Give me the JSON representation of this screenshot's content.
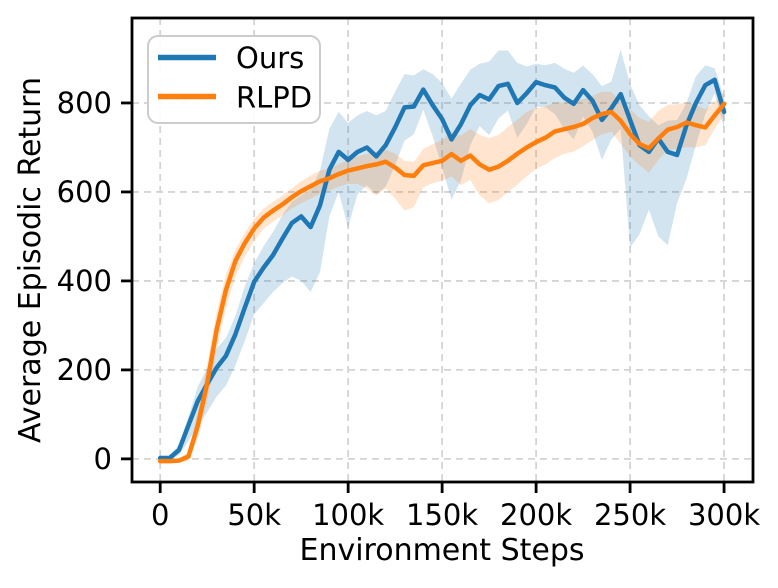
{
  "chart_data": {
    "type": "line",
    "title": "",
    "xlabel": "Environment Steps",
    "ylabel": "Average Episodic Return",
    "xlim": [
      -15000,
      315400
    ],
    "ylim": [
      -52,
      991
    ],
    "grid": true,
    "grid_style": "dashed",
    "legend_position": "upper-left",
    "x_ticks": [
      {
        "value": 0,
        "label": "0"
      },
      {
        "value": 50000,
        "label": "50k"
      },
      {
        "value": 100000,
        "label": "100k"
      },
      {
        "value": 150000,
        "label": "150k"
      },
      {
        "value": 200000,
        "label": "200k"
      },
      {
        "value": 250000,
        "label": "250k"
      },
      {
        "value": 300000,
        "label": "300k"
      }
    ],
    "y_ticks": [
      {
        "value": 0,
        "label": "0"
      },
      {
        "value": 200,
        "label": "200"
      },
      {
        "value": 400,
        "label": "400"
      },
      {
        "value": 600,
        "label": "600"
      },
      {
        "value": 800,
        "label": "800"
      }
    ],
    "x": [
      0,
      5000,
      10000,
      15000,
      20000,
      25000,
      30000,
      35000,
      40000,
      45000,
      50000,
      55000,
      60000,
      65000,
      70000,
      75000,
      80000,
      85000,
      90000,
      95000,
      100000,
      105000,
      110000,
      115000,
      120000,
      125000,
      130000,
      135000,
      140000,
      145000,
      150000,
      155000,
      160000,
      165000,
      170000,
      175000,
      180000,
      185000,
      190000,
      195000,
      200000,
      205000,
      210000,
      215000,
      220000,
      225000,
      230000,
      235000,
      240000,
      245000,
      250000,
      255000,
      260000,
      265000,
      270000,
      275000,
      280000,
      285000,
      290000,
      295000,
      300000
    ],
    "series": [
      {
        "name": "Ours",
        "color": "#1f77b4",
        "band_alpha": 0.2,
        "values": [
          2,
          2,
          20,
          75,
          130,
          168,
          205,
          232,
          280,
          340,
          398,
          430,
          458,
          495,
          530,
          545,
          521,
          570,
          650,
          690,
          672,
          690,
          700,
          680,
          705,
          745,
          790,
          792,
          830,
          795,
          764,
          718,
          752,
          795,
          818,
          808,
          838,
          843,
          800,
          822,
          847,
          840,
          835,
          812,
          798,
          829,
          805,
          762,
          788,
          820,
          762,
          705,
          690,
          720,
          690,
          683,
          750,
          800,
          840,
          852,
          780
        ],
        "band_lower": [
          -3,
          -3,
          8,
          40,
          75,
          105,
          140,
          165,
          210,
          265,
          325,
          350,
          375,
          395,
          410,
          400,
          375,
          420,
          545,
          600,
          520,
          595,
          615,
          595,
          612,
          660,
          715,
          730,
          785,
          725,
          655,
          583,
          625,
          705,
          748,
          728,
          765,
          783,
          722,
          752,
          792,
          790,
          775,
          742,
          718,
          769,
          735,
          672,
          718,
          742,
          475,
          505,
          560,
          500,
          480,
          575,
          630,
          705,
          775,
          822,
          742
        ],
        "band_upper": [
          7,
          7,
          32,
          95,
          162,
          205,
          248,
          272,
          322,
          388,
          440,
          478,
          510,
          548,
          578,
          592,
          605,
          648,
          742,
          780,
          755,
          772,
          782,
          772,
          782,
          825,
          865,
          862,
          876,
          865,
          845,
          810,
          843,
          875,
          888,
          893,
          918,
          918,
          890,
          882,
          888,
          885,
          890,
          877,
          868,
          884,
          865,
          838,
          848,
          920,
          842,
          795,
          770,
          750,
          760,
          762,
          800,
          860,
          885,
          878,
          812
        ]
      },
      {
        "name": "RLPD",
        "color": "#ff7f0e",
        "band_alpha": 0.2,
        "values": [
          -5,
          -5,
          -4,
          5,
          75,
          170,
          290,
          380,
          445,
          485,
          518,
          542,
          558,
          572,
          588,
          602,
          613,
          624,
          631,
          640,
          648,
          653,
          658,
          662,
          668,
          655,
          638,
          636,
          660,
          665,
          670,
          685,
          670,
          682,
          662,
          650,
          657,
          670,
          686,
          700,
          712,
          722,
          736,
          741,
          746,
          753,
          766,
          775,
          780,
          760,
          730,
          708,
          698,
          720,
          740,
          746,
          756,
          750,
          745,
          772,
          798
        ],
        "band_lower": [
          -9,
          -9,
          -8,
          -5,
          45,
          130,
          245,
          340,
          410,
          455,
          490,
          517,
          533,
          547,
          563,
          575,
          585,
          596,
          603,
          612,
          618,
          618,
          608,
          592,
          608,
          585,
          558,
          566,
          610,
          620,
          625,
          635,
          615,
          627,
          592,
          575,
          582,
          600,
          616,
          635,
          652,
          662,
          676,
          686,
          691,
          703,
          716,
          730,
          735,
          708,
          680,
          660,
          643,
          672,
          695,
          696,
          701,
          700,
          705,
          742,
          773
        ],
        "band_upper": [
          -1,
          -1,
          0,
          15,
          105,
          210,
          330,
          415,
          470,
          508,
          540,
          562,
          578,
          592,
          608,
          624,
          637,
          648,
          652,
          662,
          672,
          680,
          685,
          690,
          695,
          686,
          670,
          668,
          697,
          707,
          716,
          736,
          726,
          742,
          728,
          721,
          728,
          746,
          762,
          780,
          788,
          792,
          801,
          801,
          806,
          808,
          816,
          825,
          825,
          804,
          786,
          766,
          758,
          782,
          796,
          797,
          802,
          796,
          786,
          803,
          824
        ]
      }
    ],
    "styles": {
      "grid_color": "#d4d4d4",
      "frame_color": "#000000",
      "background": "#ffffff",
      "legend_border": "#cccccc"
    }
  }
}
